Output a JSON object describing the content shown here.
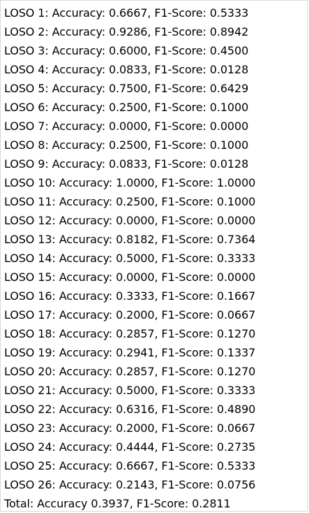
{
  "output": {
    "lines": [
      "LOSO 1: Accuracy: 0.6667, F1-Score: 0.5333",
      "LOSO 2: Accuracy: 0.9286, F1-Score: 0.8942",
      "LOSO 3: Accuracy: 0.6000, F1-Score: 0.4500",
      "LOSO 4: Accuracy: 0.0833, F1-Score: 0.0128",
      "LOSO 5: Accuracy: 0.7500, F1-Score: 0.6429",
      "LOSO 6: Accuracy: 0.2500, F1-Score: 0.1000",
      "LOSO 7: Accuracy: 0.0000, F1-Score: 0.0000",
      "LOSO 8: Accuracy: 0.2500, F1-Score: 0.1000",
      "LOSO 9: Accuracy: 0.0833, F1-Score: 0.0128",
      "LOSO 10: Accuracy: 1.0000, F1-Score: 1.0000",
      "LOSO 11: Accuracy: 0.2500, F1-Score: 0.1000",
      "LOSO 12: Accuracy: 0.0000, F1-Score: 0.0000",
      "LOSO 13: Accuracy: 0.8182, F1-Score: 0.7364",
      "LOSO 14: Accuracy: 0.5000, F1-Score: 0.3333",
      "LOSO 15: Accuracy: 0.0000, F1-Score: 0.0000",
      "LOSO 16: Accuracy: 0.3333, F1-Score: 0.1667",
      "LOSO 17: Accuracy: 0.2000, F1-Score: 0.0667",
      "LOSO 18: Accuracy: 0.2857, F1-Score: 0.1270",
      "LOSO 19: Accuracy: 0.2941, F1-Score: 0.1337",
      "LOSO 20: Accuracy: 0.2857, F1-Score: 0.1270",
      "LOSO 21: Accuracy: 0.5000, F1-Score: 0.3333",
      "LOSO 22: Accuracy: 0.6316, F1-Score: 0.4890",
      "LOSO 23: Accuracy: 0.2000, F1-Score: 0.0667",
      "LOSO 24: Accuracy: 0.4444, F1-Score: 0.2735",
      "LOSO 25: Accuracy: 0.6667, F1-Score: 0.5333",
      "LOSO 26: Accuracy: 0.2143, F1-Score: 0.0756",
      "Total: Accuracy 0.3937, F1-Score: 0.2811"
    ]
  }
}
